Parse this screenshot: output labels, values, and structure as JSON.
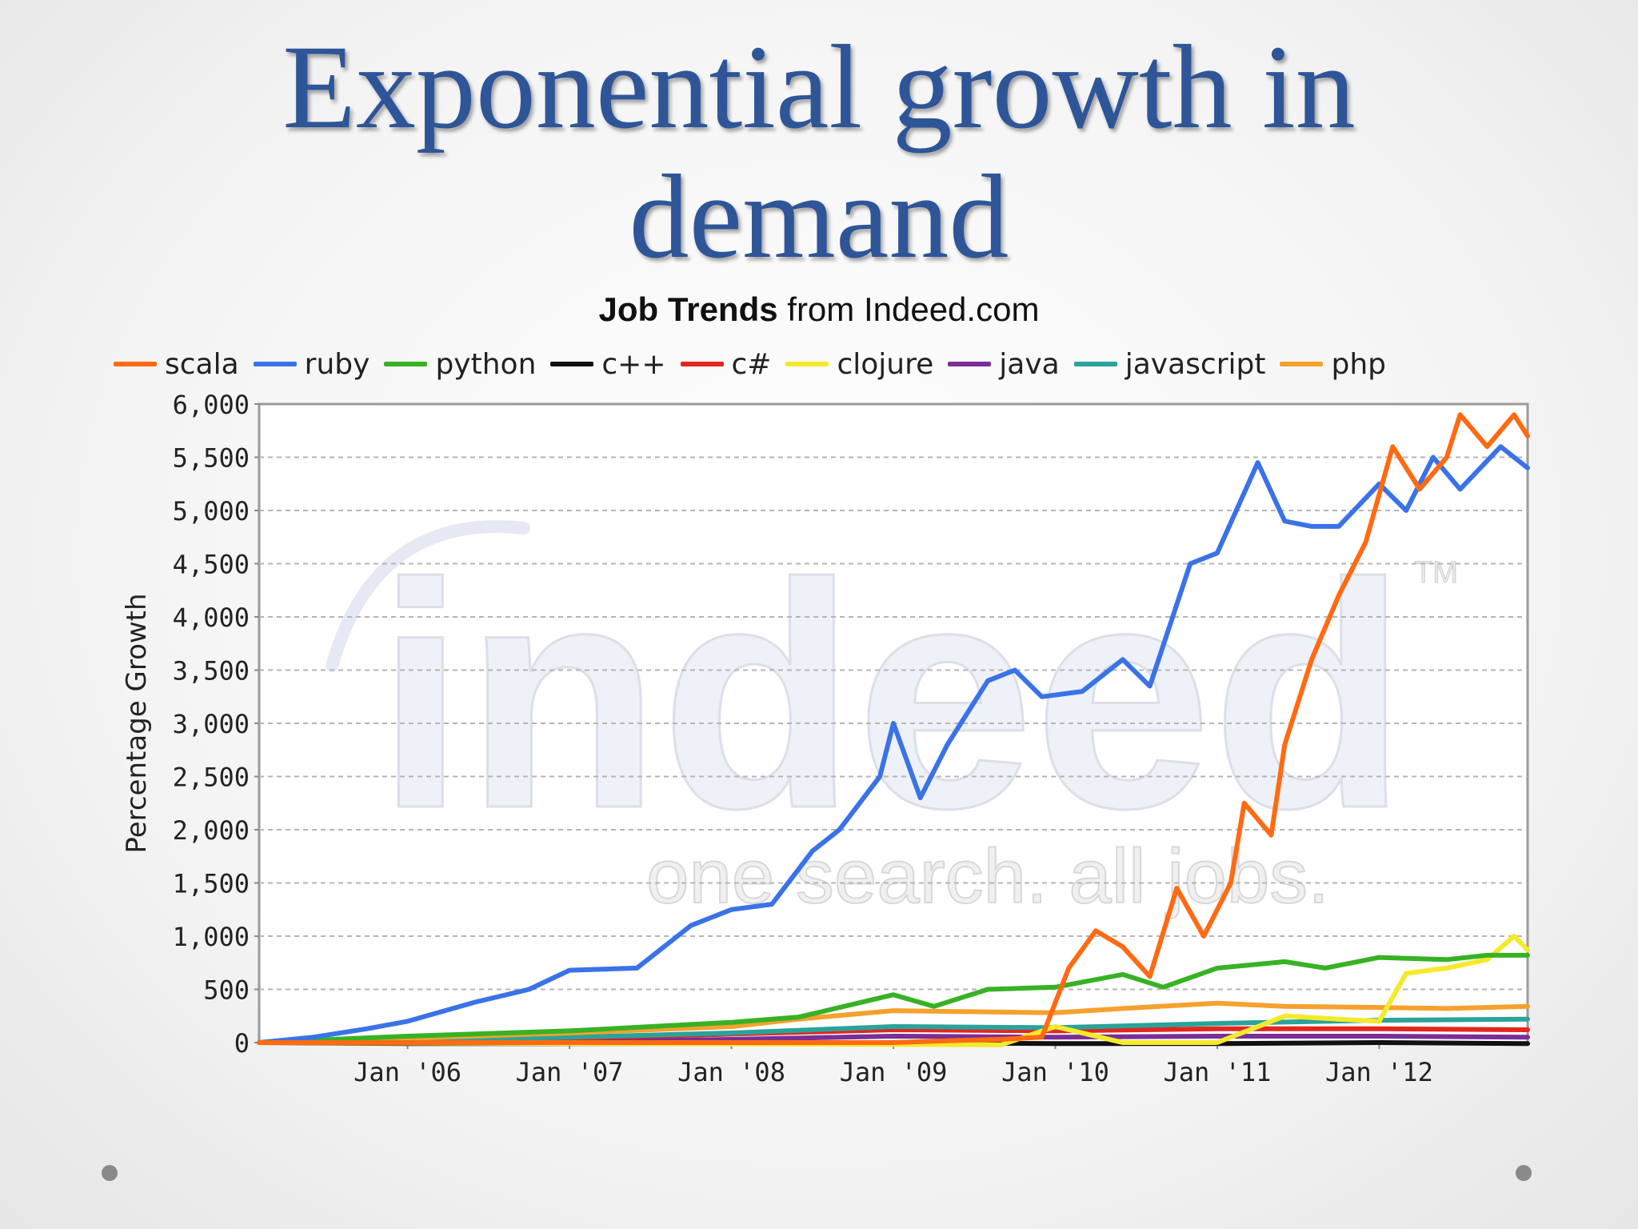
{
  "slide": {
    "title_line1": "Exponential growth in",
    "title_line2": "demand"
  },
  "chart_data": {
    "type": "line",
    "title_bold": "Job Trends",
    "title_rest": "from Indeed.com",
    "ylabel": "Percentage Growth",
    "xlabel": "",
    "ylim": [
      0,
      6000
    ],
    "xlim": [
      "2005-02",
      "2012-12"
    ],
    "yticks": [
      "6,000",
      "5,500",
      "5,000",
      "4,500",
      "4,000",
      "3,500",
      "3,000",
      "2,500",
      "2,000",
      "1,500",
      "1,000",
      "500",
      "0"
    ],
    "ytick_values": [
      6000,
      5500,
      5000,
      4500,
      4000,
      3500,
      3000,
      2500,
      2000,
      1500,
      1000,
      500,
      0
    ],
    "xticks": [
      "Jan '06",
      "Jan '07",
      "Jan '08",
      "Jan '09",
      "Jan '10",
      "Jan '11",
      "Jan '12"
    ],
    "xtick_dates": [
      "2006-01",
      "2007-01",
      "2008-01",
      "2009-01",
      "2010-01",
      "2011-01",
      "2012-01"
    ],
    "grid": true,
    "legend_position": "top",
    "watermark": {
      "wordmark": "indeed",
      "tagline": "one search. all jobs.",
      "tm": "TM"
    },
    "series": [
      {
        "name": "scala",
        "color": "#ff6a13",
        "points": [
          [
            "2005-02",
            0
          ],
          [
            "2006-01",
            0
          ],
          [
            "2007-01",
            0
          ],
          [
            "2008-01",
            0
          ],
          [
            "2009-01",
            0
          ],
          [
            "2009-06",
            20
          ],
          [
            "2009-09",
            30
          ],
          [
            "2009-12",
            50
          ],
          [
            "2010-02",
            700
          ],
          [
            "2010-04",
            1050
          ],
          [
            "2010-06",
            900
          ],
          [
            "2010-08",
            620
          ],
          [
            "2010-10",
            1450
          ],
          [
            "2010-12",
            1000
          ],
          [
            "2011-02",
            1500
          ],
          [
            "2011-03",
            2250
          ],
          [
            "2011-05",
            1950
          ],
          [
            "2011-06",
            2800
          ],
          [
            "2011-08",
            3600
          ],
          [
            "2011-10",
            4200
          ],
          [
            "2011-12",
            4700
          ],
          [
            "2012-02",
            5600
          ],
          [
            "2012-04",
            5200
          ],
          [
            "2012-06",
            5500
          ],
          [
            "2012-07",
            5900
          ],
          [
            "2012-09",
            5600
          ],
          [
            "2012-11",
            5900
          ],
          [
            "2012-12",
            5700
          ]
        ]
      },
      {
        "name": "ruby",
        "color": "#3a72e8",
        "points": [
          [
            "2005-02",
            0
          ],
          [
            "2005-06",
            50
          ],
          [
            "2005-10",
            130
          ],
          [
            "2006-01",
            200
          ],
          [
            "2006-06",
            380
          ],
          [
            "2006-10",
            500
          ],
          [
            "2007-01",
            680
          ],
          [
            "2007-06",
            700
          ],
          [
            "2007-10",
            1100
          ],
          [
            "2008-01",
            1250
          ],
          [
            "2008-04",
            1300
          ],
          [
            "2008-07",
            1800
          ],
          [
            "2008-09",
            2000
          ],
          [
            "2008-12",
            2500
          ],
          [
            "2009-01",
            3000
          ],
          [
            "2009-03",
            2300
          ],
          [
            "2009-05",
            2800
          ],
          [
            "2009-08",
            3400
          ],
          [
            "2009-10",
            3500
          ],
          [
            "2009-12",
            3250
          ],
          [
            "2010-03",
            3300
          ],
          [
            "2010-06",
            3600
          ],
          [
            "2010-08",
            3350
          ],
          [
            "2010-11",
            4500
          ],
          [
            "2011-01",
            4600
          ],
          [
            "2011-04",
            5450
          ],
          [
            "2011-06",
            4900
          ],
          [
            "2011-08",
            4850
          ],
          [
            "2011-10",
            4850
          ],
          [
            "2012-01",
            5250
          ],
          [
            "2012-03",
            5000
          ],
          [
            "2012-05",
            5500
          ],
          [
            "2012-07",
            5200
          ],
          [
            "2012-10",
            5600
          ],
          [
            "2012-12",
            5400
          ]
        ]
      },
      {
        "name": "python",
        "color": "#38b225",
        "points": [
          [
            "2005-02",
            0
          ],
          [
            "2006-01",
            60
          ],
          [
            "2007-01",
            110
          ],
          [
            "2008-01",
            190
          ],
          [
            "2008-06",
            240
          ],
          [
            "2009-01",
            450
          ],
          [
            "2009-04",
            340
          ],
          [
            "2009-08",
            500
          ],
          [
            "2010-01",
            520
          ],
          [
            "2010-06",
            640
          ],
          [
            "2010-09",
            520
          ],
          [
            "2011-01",
            700
          ],
          [
            "2011-06",
            760
          ],
          [
            "2011-09",
            700
          ],
          [
            "2012-01",
            800
          ],
          [
            "2012-06",
            780
          ],
          [
            "2012-09",
            820
          ],
          [
            "2012-12",
            820
          ]
        ]
      },
      {
        "name": "c++",
        "color": "#111111",
        "points": [
          [
            "2005-02",
            0
          ],
          [
            "2006-01",
            -10
          ],
          [
            "2007-01",
            -10
          ],
          [
            "2008-01",
            -10
          ],
          [
            "2009-01",
            0
          ],
          [
            "2010-01",
            -10
          ],
          [
            "2011-01",
            -10
          ],
          [
            "2012-01",
            0
          ],
          [
            "2012-12",
            -10
          ]
        ]
      },
      {
        "name": "c#",
        "color": "#e3261f",
        "points": [
          [
            "2005-02",
            0
          ],
          [
            "2006-01",
            20
          ],
          [
            "2007-01",
            40
          ],
          [
            "2008-01",
            80
          ],
          [
            "2009-01",
            120
          ],
          [
            "2010-01",
            110
          ],
          [
            "2011-01",
            130
          ],
          [
            "2012-01",
            130
          ],
          [
            "2012-12",
            120
          ]
        ]
      },
      {
        "name": "clojure",
        "color": "#f4ea2c",
        "points": [
          [
            "2005-02",
            0
          ],
          [
            "2009-09",
            -20
          ],
          [
            "2010-01",
            150
          ],
          [
            "2010-06",
            0
          ],
          [
            "2011-01",
            0
          ],
          [
            "2011-06",
            250
          ],
          [
            "2011-10",
            220
          ],
          [
            "2012-01",
            200
          ],
          [
            "2012-03",
            650
          ],
          [
            "2012-06",
            700
          ],
          [
            "2012-09",
            780
          ],
          [
            "2012-11",
            1000
          ],
          [
            "2012-12",
            870
          ]
        ]
      },
      {
        "name": "java",
        "color": "#7a2e96",
        "points": [
          [
            "2005-02",
            0
          ],
          [
            "2006-01",
            0
          ],
          [
            "2007-01",
            10
          ],
          [
            "2008-01",
            30
          ],
          [
            "2009-01",
            60
          ],
          [
            "2010-01",
            50
          ],
          [
            "2011-01",
            60
          ],
          [
            "2012-01",
            60
          ],
          [
            "2012-12",
            50
          ]
        ]
      },
      {
        "name": "javascript",
        "color": "#2aa39a",
        "points": [
          [
            "2005-02",
            0
          ],
          [
            "2006-01",
            20
          ],
          [
            "2007-01",
            50
          ],
          [
            "2008-01",
            90
          ],
          [
            "2009-01",
            150
          ],
          [
            "2010-01",
            140
          ],
          [
            "2011-01",
            180
          ],
          [
            "2012-01",
            210
          ],
          [
            "2012-12",
            220
          ]
        ]
      },
      {
        "name": "php",
        "color": "#f5a12e",
        "points": [
          [
            "2005-02",
            0
          ],
          [
            "2006-01",
            40
          ],
          [
            "2007-01",
            90
          ],
          [
            "2008-01",
            150
          ],
          [
            "2008-06",
            220
          ],
          [
            "2009-01",
            300
          ],
          [
            "2010-01",
            280
          ],
          [
            "2010-06",
            320
          ],
          [
            "2011-01",
            370
          ],
          [
            "2011-06",
            340
          ],
          [
            "2012-01",
            330
          ],
          [
            "2012-06",
            320
          ],
          [
            "2012-12",
            340
          ]
        ]
      }
    ]
  }
}
